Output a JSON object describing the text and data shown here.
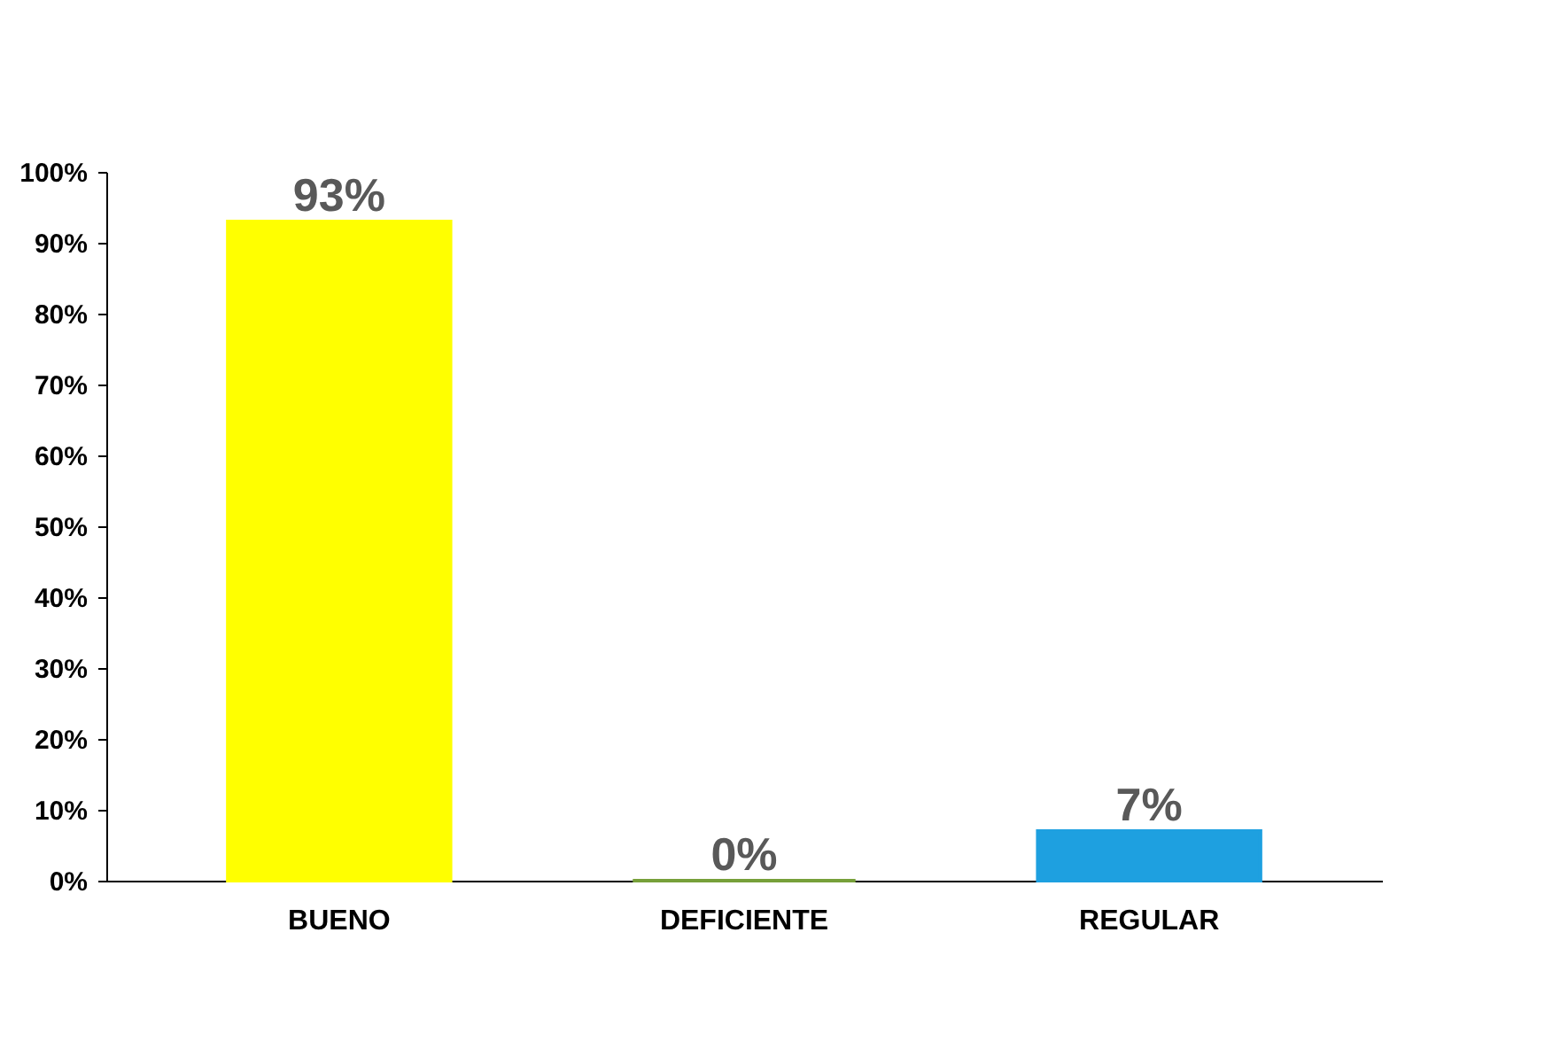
{
  "chart_data": {
    "type": "bar",
    "categories": [
      "BUENO",
      "DEFICIENTE",
      "REGULAR"
    ],
    "values": [
      93,
      0,
      7
    ],
    "colors": [
      "#ffff00",
      "#77a03a",
      "#1ea0e0"
    ],
    "value_labels": [
      "93%",
      "0%",
      "7%"
    ],
    "ylim": [
      0,
      100
    ],
    "yticks": [
      {
        "value": 0,
        "label": "0%"
      },
      {
        "value": 10,
        "label": "10%"
      },
      {
        "value": 20,
        "label": "20%"
      },
      {
        "value": 30,
        "label": "30%"
      },
      {
        "value": 40,
        "label": "40%"
      },
      {
        "value": 50,
        "label": "50%"
      },
      {
        "value": 60,
        "label": "60%"
      },
      {
        "value": 70,
        "label": "70%"
      },
      {
        "value": 80,
        "label": "80%"
      },
      {
        "value": 90,
        "label": "90%"
      },
      {
        "value": 100,
        "label": "100%"
      }
    ],
    "grid": false,
    "legend": false
  }
}
